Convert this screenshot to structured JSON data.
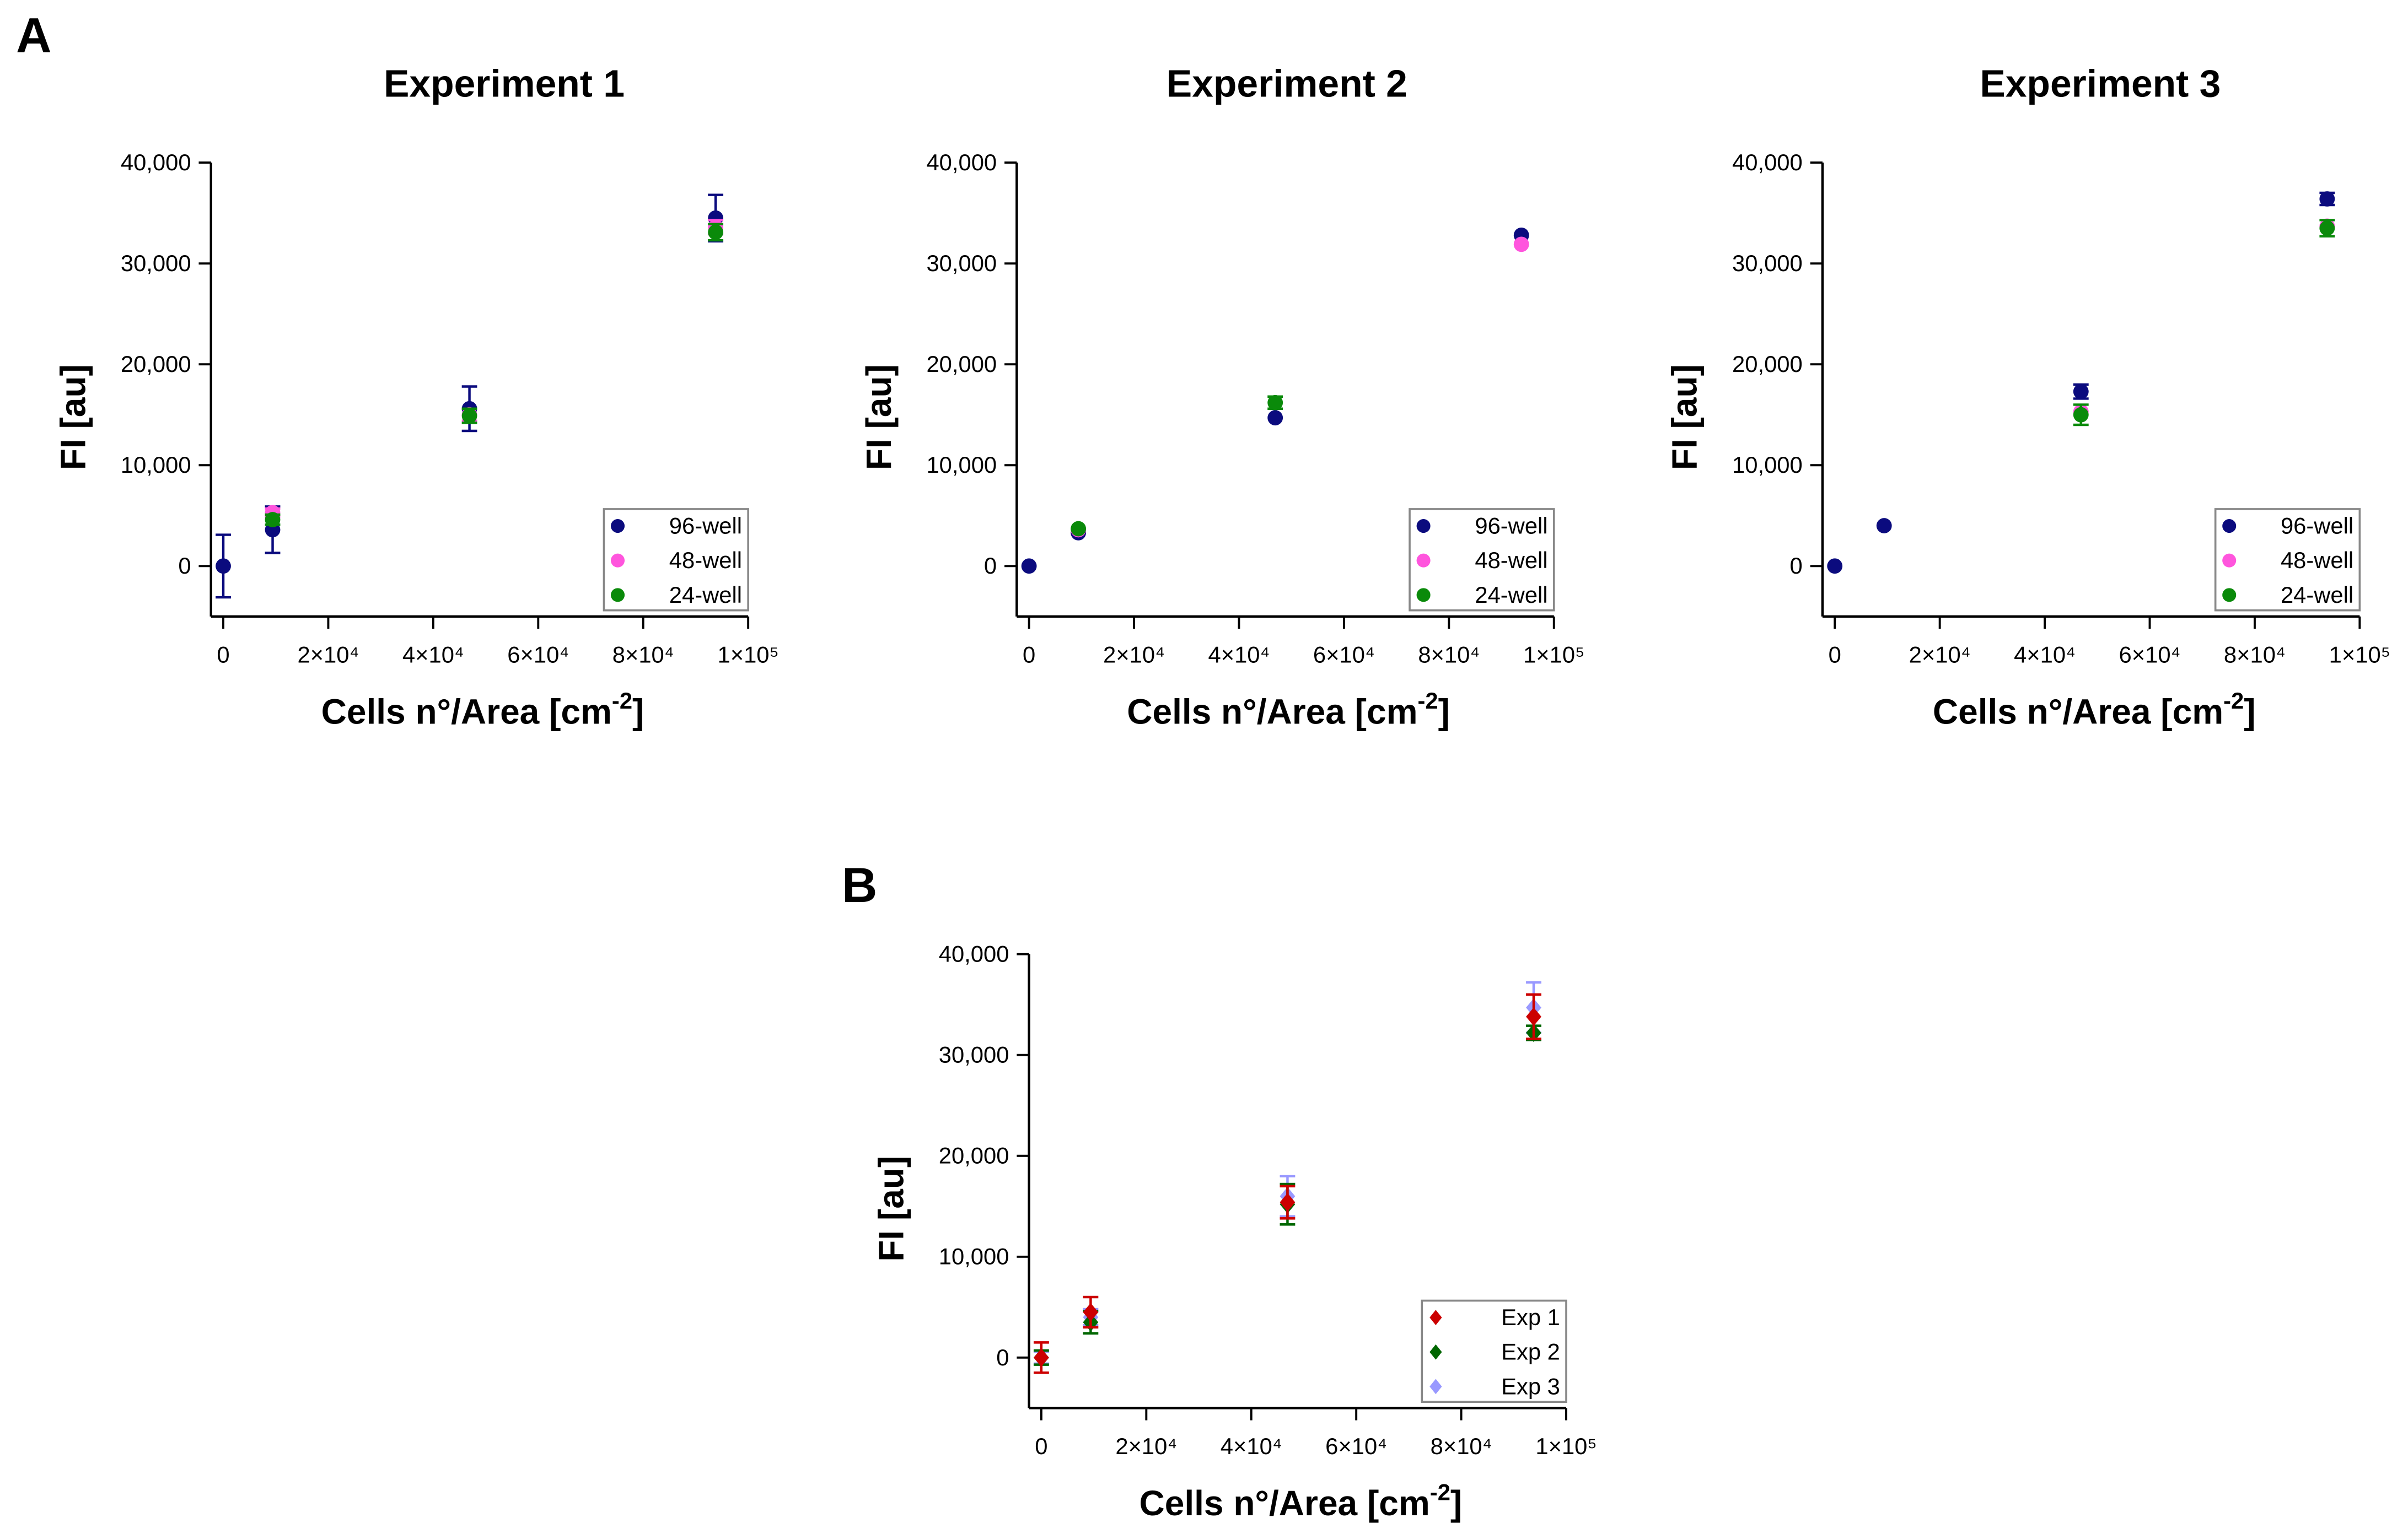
{
  "panel_labels": [
    "A",
    "B"
  ],
  "chart_data": [
    {
      "type": "scatter",
      "panel": "A",
      "title": "Experiment 1",
      "xlabel": "Cells n°/Area [cm",
      "xlabel_sup": "-2",
      "xlabel_end": "]",
      "ylabel": "FI [au]",
      "xlim": [
        0,
        100000
      ],
      "ylim": [
        -5000,
        40000
      ],
      "xticks": [
        0,
        20000,
        40000,
        60000,
        80000,
        100000
      ],
      "xtick_labels": [
        "0",
        "2×10⁴",
        "4×10⁴",
        "6×10⁴",
        "8×10⁴",
        "1×10⁵"
      ],
      "yticks": [
        0,
        10000,
        20000,
        30000,
        40000
      ],
      "ytick_labels": [
        "0",
        "10,000",
        "20,000",
        "30,000",
        "40,000"
      ],
      "legend_position": "bottom-right",
      "marker": "circle",
      "series": [
        {
          "name": "96-well",
          "color": "#0b0b7e",
          "points": [
            [
              0,
              0,
              3100
            ],
            [
              9400,
              3600,
              2300
            ],
            [
              46900,
              15600,
              2200
            ],
            [
              93800,
              34500,
              2300
            ]
          ]
        },
        {
          "name": "48-well",
          "color": "#ff55dd",
          "points": [
            [
              9400,
              5300,
              400
            ],
            [
              46900,
              15000,
              600
            ],
            [
              93800,
              33600,
              700
            ]
          ]
        },
        {
          "name": "24-well",
          "color": "#0a8a0a",
          "points": [
            [
              9400,
              4600,
              500
            ],
            [
              46900,
              14900,
              700
            ],
            [
              93800,
              33100,
              800
            ]
          ]
        }
      ]
    },
    {
      "type": "scatter",
      "panel": "A",
      "title": "Experiment 2",
      "xlabel": "Cells n°/Area [cm",
      "xlabel_sup": "-2",
      "xlabel_end": "]",
      "ylabel": "FI [au]",
      "xlim": [
        0,
        100000
      ],
      "ylim": [
        -5000,
        40000
      ],
      "xticks": [
        0,
        20000,
        40000,
        60000,
        80000,
        100000
      ],
      "xtick_labels": [
        "0",
        "2×10⁴",
        "4×10⁴",
        "6×10⁴",
        "8×10⁴",
        "1×10⁵"
      ],
      "yticks": [
        0,
        10000,
        20000,
        30000,
        40000
      ],
      "ytick_labels": [
        "0",
        "10,000",
        "20,000",
        "30,000",
        "40,000"
      ],
      "legend_position": "bottom-right",
      "marker": "circle",
      "series": [
        {
          "name": "96-well",
          "color": "#0b0b7e",
          "points": [
            [
              0,
              0,
              0
            ],
            [
              9400,
              3300,
              0
            ],
            [
              46900,
              14700,
              0
            ],
            [
              93800,
              32800,
              0
            ]
          ]
        },
        {
          "name": "48-well",
          "color": "#ff55dd",
          "points": [
            [
              9400,
              3600,
              0
            ],
            [
              93800,
              31900,
              0
            ]
          ]
        },
        {
          "name": "24-well",
          "color": "#0a8a0a",
          "points": [
            [
              9400,
              3700,
              0
            ],
            [
              46900,
              16200,
              600
            ]
          ]
        }
      ]
    },
    {
      "type": "scatter",
      "panel": "A",
      "title": "Experiment 3",
      "xlabel": "Cells n°/Area [cm",
      "xlabel_sup": "-2",
      "xlabel_end": "]",
      "ylabel": "FI [au]",
      "xlim": [
        0,
        100000
      ],
      "ylim": [
        -5000,
        40000
      ],
      "xticks": [
        0,
        20000,
        40000,
        60000,
        80000,
        100000
      ],
      "xtick_labels": [
        "0",
        "2×10⁴",
        "4×10⁴",
        "6×10⁴",
        "8×10⁴",
        "1×10⁵"
      ],
      "yticks": [
        0,
        10000,
        20000,
        30000,
        40000
      ],
      "ytick_labels": [
        "0",
        "10,000",
        "20,000",
        "30,000",
        "40,000"
      ],
      "legend_position": "bottom-right",
      "marker": "circle",
      "series": [
        {
          "name": "96-well",
          "color": "#0b0b7e",
          "points": [
            [
              0,
              0,
              0
            ],
            [
              9400,
              4000,
              0
            ],
            [
              46900,
              17300,
              700
            ],
            [
              93800,
              36400,
              600
            ]
          ]
        },
        {
          "name": "48-well",
          "color": "#ff55dd",
          "points": [
            [
              46900,
              15300,
              0
            ],
            [
              93800,
              33700,
              0
            ]
          ]
        },
        {
          "name": "24-well",
          "color": "#0a8a0a",
          "points": [
            [
              46900,
              15000,
              1000
            ],
            [
              93800,
              33500,
              800
            ]
          ]
        }
      ]
    },
    {
      "type": "scatter",
      "panel": "B",
      "title": "",
      "xlabel": "Cells n°/Area [cm",
      "xlabel_sup": "-2",
      "xlabel_end": "]",
      "ylabel": "FI [au]",
      "xlim": [
        0,
        100000
      ],
      "ylim": [
        -5000,
        40000
      ],
      "xticks": [
        0,
        20000,
        40000,
        60000,
        80000,
        100000
      ],
      "xtick_labels": [
        "0",
        "2×10⁴",
        "4×10⁴",
        "6×10⁴",
        "8×10⁴",
        "1×10⁵"
      ],
      "yticks": [
        0,
        10000,
        20000,
        30000,
        40000
      ],
      "ytick_labels": [
        "0",
        "10,000",
        "20,000",
        "30,000",
        "40,000"
      ],
      "legend_position": "bottom-right",
      "marker": "diamond",
      "series": [
        {
          "name": "Exp 3",
          "color": "#9999ff",
          "points": [
            [
              0,
              0,
              600
            ],
            [
              9400,
              4000,
              800
            ],
            [
              46900,
              16000,
              2000
            ],
            [
              93800,
              34700,
              2500
            ]
          ]
        },
        {
          "name": "Exp 2",
          "color": "#006600",
          "points": [
            [
              0,
              0,
              700
            ],
            [
              9400,
              3500,
              1100
            ],
            [
              46900,
              15200,
              2000
            ],
            [
              93800,
              32200,
              700
            ]
          ]
        },
        {
          "name": "Exp 1",
          "color": "#cc0000",
          "points": [
            [
              0,
              0,
              1500
            ],
            [
              9400,
              4500,
              1500
            ],
            [
              46900,
              15400,
              1600
            ],
            [
              93800,
              33800,
              2200
            ]
          ]
        }
      ],
      "legend_order": [
        "Exp 1",
        "Exp 2",
        "Exp 3"
      ]
    }
  ]
}
